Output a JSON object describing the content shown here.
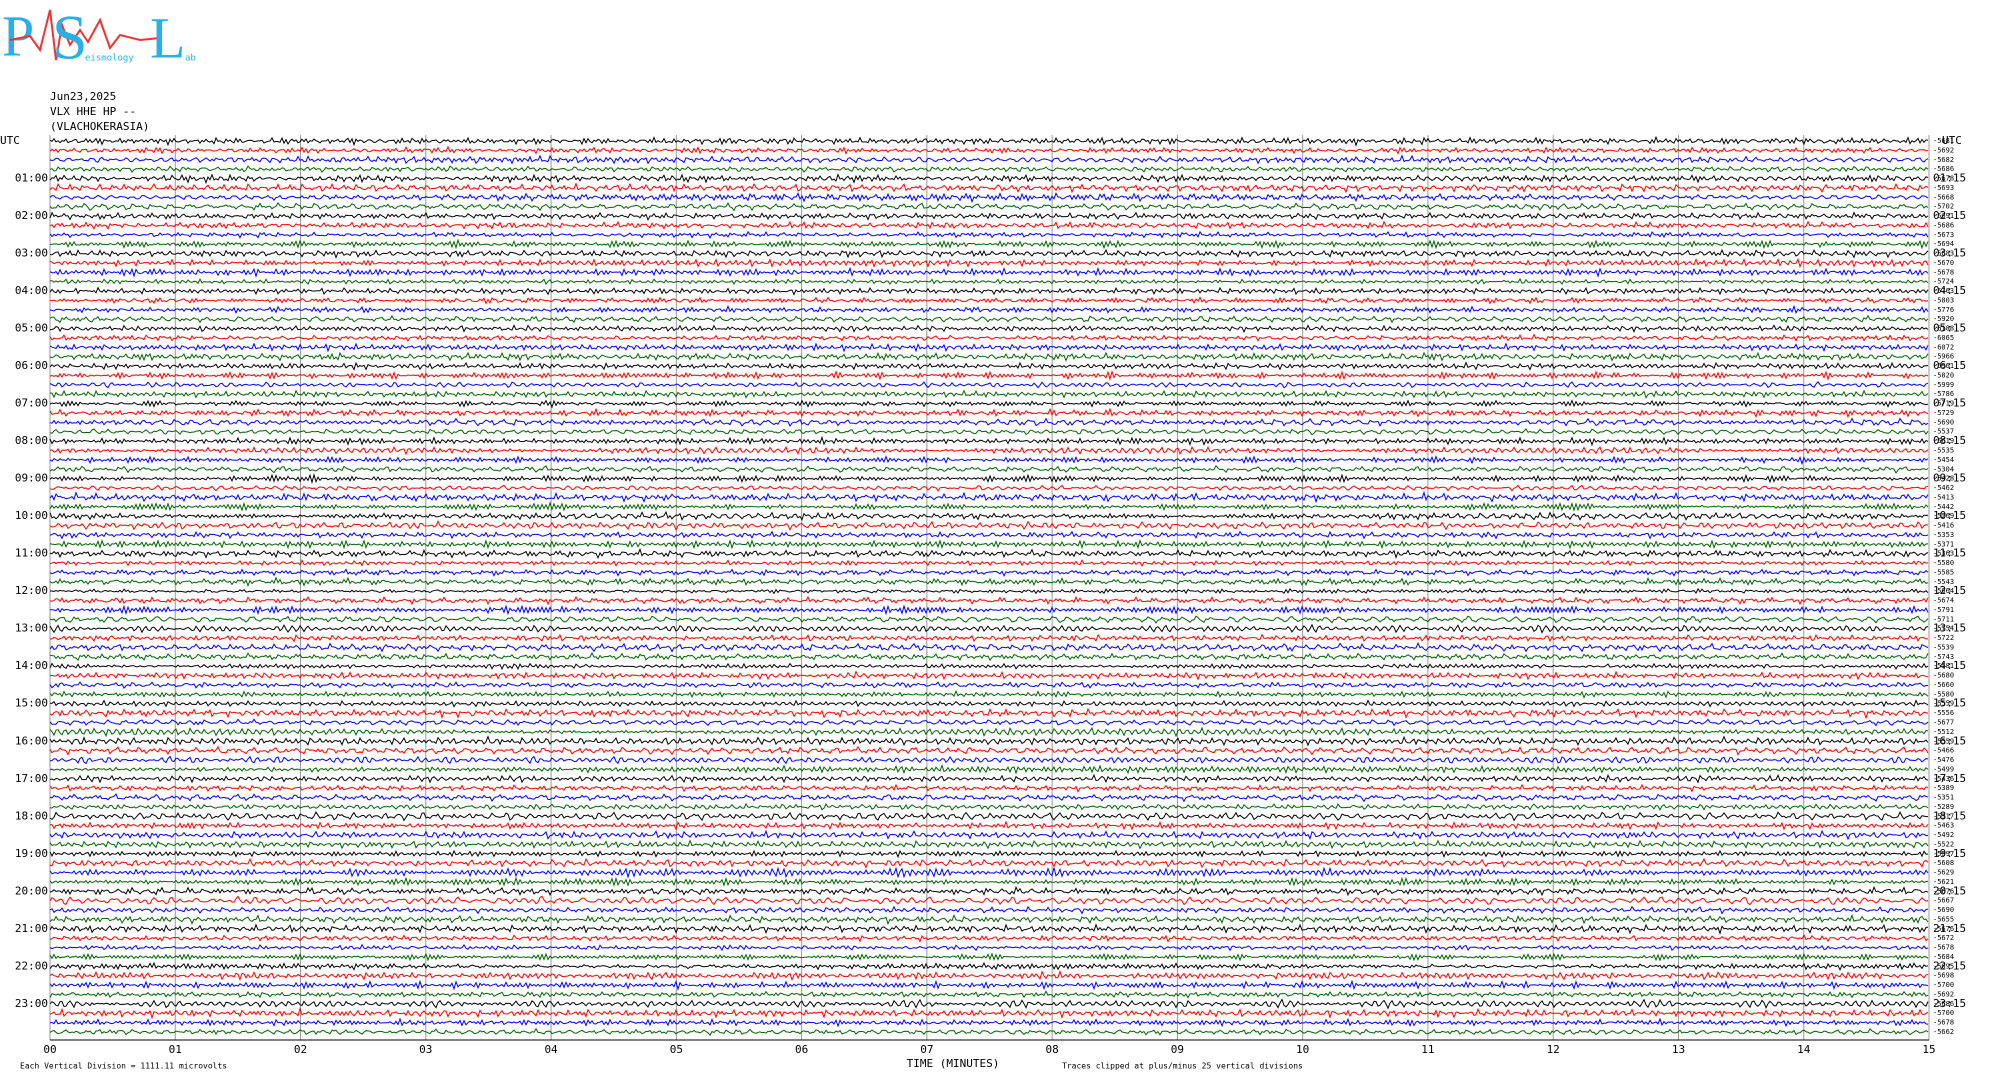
{
  "chart_data": {
    "type": "helicorder",
    "logo": {
      "letters": [
        "P",
        "S",
        "L"
      ],
      "small_text": [
        "eismology",
        "ab"
      ]
    },
    "header": [
      "Jun23,2025",
      "VLX HHE HP --",
      "(VLACHOKERASIA)"
    ],
    "left_labels": [
      "UTC",
      "01:00",
      "02:00",
      "03:00",
      "04:00",
      "05:00",
      "06:00",
      "07:00",
      "08:00",
      "09:00",
      "10:00",
      "11:00",
      "12:00",
      "13:00",
      "14:00",
      "15:00",
      "16:00",
      "17:00",
      "18:00",
      "19:00",
      "20:00",
      "21:00",
      "22:00",
      "23:00"
    ],
    "right_labels": [
      "UTC",
      "01:15",
      "02:15",
      "03:15",
      "04:15",
      "05:15",
      "06:15",
      "07:15",
      "08:15",
      "09:15",
      "10:15",
      "11:15",
      "12:15",
      "13:15",
      "14:15",
      "15:15",
      "16:15",
      "17:15",
      "18:15",
      "19:15",
      "20:15",
      "21:15",
      "22:15",
      "23:15"
    ],
    "trace_colors": [
      "#000000",
      "#ff0000",
      "#0000ff",
      "#006400"
    ],
    "offsets": [
      -5681,
      -5692,
      -5682,
      -5686,
      -5678,
      -5693,
      -5668,
      -5702,
      -5691,
      -5686,
      -5673,
      -5694,
      -5683,
      -5670,
      -5678,
      -5724,
      -5763,
      -5803,
      -5776,
      -5920,
      -6188,
      -6065,
      -6072,
      -5966,
      -5961,
      -5820,
      -5999,
      -5786,
      -5719,
      -5729,
      -5690,
      -5537,
      -5619,
      -5535,
      -5454,
      -5304,
      -5428,
      -5462,
      -5413,
      -5442,
      -5269,
      -5416,
      -5353,
      -5371,
      -5363,
      -5580,
      -5585,
      -5543,
      -5664,
      -5674,
      -5791,
      -5711,
      -5754,
      -5722,
      -5539,
      -5743,
      -5581,
      -5680,
      -5660,
      -5580,
      -5559,
      -5556,
      -5677,
      -5512,
      -5559,
      -5466,
      -5476,
      -5499,
      -5436,
      -5389,
      -5351,
      -5289,
      -5317,
      -5463,
      -5492,
      -5522,
      -5597,
      -5608,
      -5629,
      -5621,
      -5676,
      -5667,
      -5690,
      -5655,
      -5676,
      -5672,
      -5678,
      -5684,
      -5695,
      -5698,
      -5700,
      -5692,
      -5686,
      -5700,
      -5678,
      -5662
    ],
    "xlim": [
      0,
      15
    ],
    "xticks": [
      {
        "value": 0,
        "label": "00"
      },
      {
        "value": 1,
        "label": "01"
      },
      {
        "value": 2,
        "label": "02"
      },
      {
        "value": 3,
        "label": "03"
      },
      {
        "value": 4,
        "label": "04"
      },
      {
        "value": 5,
        "label": "05"
      },
      {
        "value": 6,
        "label": "06"
      },
      {
        "value": 7,
        "label": "07"
      },
      {
        "value": 8,
        "label": "08"
      },
      {
        "value": 9,
        "label": "09"
      },
      10,
      11,
      12,
      13,
      14,
      15
    ],
    "xlabel": "TIME (MINUTES)",
    "footer_left": "Each Vertical Division = 1111.11 microvolts",
    "footer_right": "Traces clipped at plus/minus 25 vertical divisions"
  }
}
